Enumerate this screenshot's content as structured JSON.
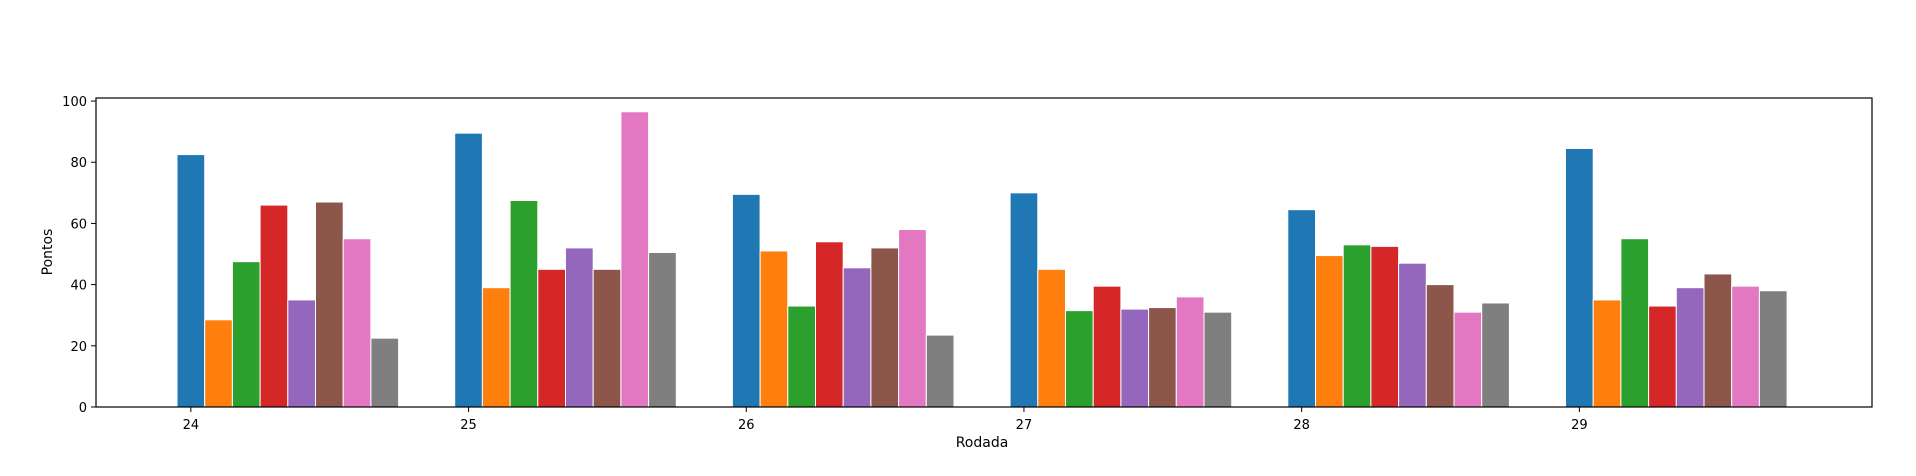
{
  "chart_data": {
    "type": "bar",
    "title": "",
    "xlabel": "Rodada",
    "ylabel": "Pontos",
    "categories": [
      "24",
      "25",
      "26",
      "27",
      "28",
      "29"
    ],
    "ylim": [
      0,
      101
    ],
    "yticks": [
      0,
      20,
      40,
      60,
      80,
      100
    ],
    "grid": false,
    "legend": "none",
    "colors": [
      "#1f77b4",
      "#ff7f0e",
      "#2ca02c",
      "#d62728",
      "#9467bd",
      "#8c564b",
      "#e377c2",
      "#7f7f7f"
    ],
    "series": [
      {
        "values": [
          82.5,
          89.5,
          69.5,
          70.0,
          64.5,
          84.5
        ]
      },
      {
        "values": [
          28.5,
          39.0,
          51.0,
          45.0,
          49.5,
          35.0
        ]
      },
      {
        "values": [
          47.5,
          67.5,
          33.0,
          31.5,
          53.0,
          55.0
        ]
      },
      {
        "values": [
          66.0,
          45.0,
          54.0,
          39.5,
          52.5,
          33.0
        ]
      },
      {
        "values": [
          35.0,
          52.0,
          45.5,
          32.0,
          47.0,
          39.0
        ]
      },
      {
        "values": [
          67.0,
          45.0,
          52.0,
          32.5,
          40.0,
          43.5
        ]
      },
      {
        "values": [
          55.0,
          96.5,
          58.0,
          36.0,
          31.0,
          39.5
        ]
      },
      {
        "values": [
          22.5,
          50.5,
          23.5,
          31.0,
          34.0,
          38.0
        ]
      }
    ]
  }
}
